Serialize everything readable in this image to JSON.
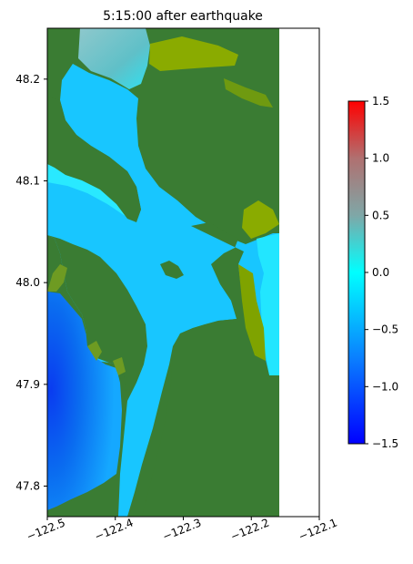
{
  "chart_data": {
    "type": "heatmap",
    "title": "5:15:00 after earthquake",
    "xlabel": "",
    "ylabel": "",
    "xlim": [
      -122.5,
      -122.1
    ],
    "ylim": [
      47.77,
      48.25
    ],
    "x_ticks": [
      -122.5,
      -122.4,
      -122.3,
      -122.2,
      -122.1
    ],
    "x_tick_labels": [
      "−122.5",
      "−122.4",
      "−122.3",
      "−122.2",
      "−122.1"
    ],
    "y_ticks": [
      47.8,
      47.9,
      48.0,
      48.1,
      48.2
    ],
    "y_tick_labels": [
      "47.8",
      "47.9",
      "48.0",
      "48.1",
      "48.2"
    ],
    "data_extent": {
      "x": [
        -122.5,
        -122.16
      ],
      "y": [
        47.77,
        48.25
      ]
    },
    "grid": false,
    "colorbar": {
      "range": [
        -1.5,
        1.5
      ],
      "ticks": [
        1.5,
        1.0,
        0.5,
        0.0,
        -0.5,
        -1.0,
        -1.5
      ],
      "tick_labels": [
        "1.5",
        "1.0",
        "0.5",
        "0.0",
        "−0.5",
        "−1.0",
        "−1.5"
      ],
      "colormap_stops": [
        {
          "value": -1.5,
          "color": "#0000ff"
        },
        {
          "value": -0.75,
          "color": "#0a7fff"
        },
        {
          "value": 0.0,
          "color": "#00ffff"
        },
        {
          "value": 0.5,
          "color": "#7fa7a7"
        },
        {
          "value": 1.0,
          "color": "#b07070"
        },
        {
          "value": 1.5,
          "color": "#ff0000"
        }
      ]
    },
    "colors": {
      "land": "#3a7c33",
      "dry_land_edge": "#8aab00",
      "water_typical": "#18c6ff",
      "water_deep_low": "#0a56f0"
    }
  }
}
